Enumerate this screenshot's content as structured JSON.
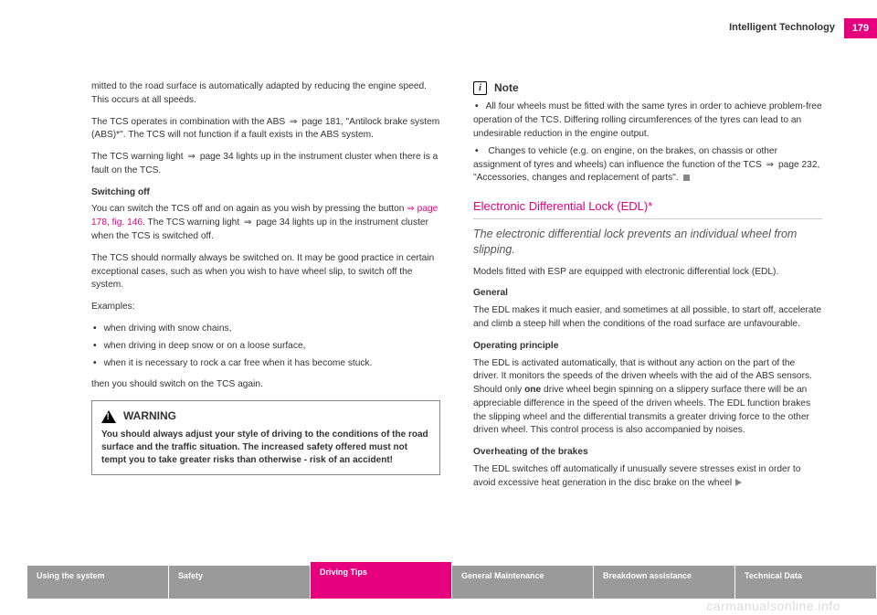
{
  "header": {
    "section": "Intelligent Technology",
    "page_number": "179"
  },
  "left": {
    "p1": "mitted to the road surface is automatically adapted by reducing the engine speed. This occurs at all speeds.",
    "p2a": "The TCS operates in combination with the ABS ",
    "p2b": " page 181, \"Antilock brake system (ABS)*\". The TCS will not function if a fault exists in the ABS system.",
    "p3a": "The TCS warning light ",
    "p3b": " page 34 lights up in the instrument cluster when there is a fault on the TCS.",
    "switching_head": "Switching off",
    "p4a": "You can switch the TCS off and on again as you wish by pressing the button ",
    "p4link": "⇒ page 178, fig. 146",
    "p4b": ". The TCS warning light ",
    "p4c": " page 34 lights up in the instrument cluster when the TCS is switched off.",
    "p5": "The TCS should normally always be switched on. It may be good practice in certain exceptional cases, such as when you wish to have wheel slip, to switch off the system.",
    "p6": "Examples:",
    "bullets": [
      "when driving with snow chains,",
      "when driving in deep snow or on a loose surface,",
      "when it is necessary to rock a car free when it has become stuck."
    ],
    "p7": "then you should switch on the TCS again.",
    "warning_label": "WARNING",
    "warning_text": "You should always adjust your style of driving to the conditions of the road surface and the traffic situation. The increased safety offered must not tempt you to take greater risks than otherwise - risk of an accident!"
  },
  "right": {
    "note_label": "Note",
    "note1": "All four wheels must be fitted with the same tyres in order to achieve problem-free operation of the TCS. Differing rolling circumferences of the tyres can lead to an undesirable reduction in the engine output.",
    "note2a": "Changes to vehicle (e.g. on engine, on the brakes, on chassis or other assignment of tyres and wheels) can influence the function of the TCS ",
    "note2b": " page 232, \"Accessories, changes and replacement of parts\".",
    "edl_head": "Electronic Differential Lock (EDL)*",
    "edl_sub": "The electronic differential lock prevents an individual wheel from slipping.",
    "p1": "Models fitted with ESP are equipped with electronic differential lock (EDL).",
    "general_head": "General",
    "p2": "The EDL makes it much easier, and sometimes at all possible, to start off, accelerate and climb a steep hill when the conditions of the road surface are unfavourable.",
    "op_head": "Operating principle",
    "p3a": "The EDL is activated automatically, that is without any action on the part of the driver. It monitors the speeds of the driven wheels with the aid of the ABS sensors. Should only ",
    "p3one": "one",
    "p3b": " drive wheel begin spinning on a slippery surface there will be an appreciable difference in the speed of the driven wheels. The EDL function brakes the slipping wheel and the differential transmits a greater driving force to the other driven wheel. This control process is also accompanied by noises.",
    "overheat_head": "Overheating of the brakes",
    "p4": "The EDL switches off automatically if unusually severe stresses exist in order to avoid excessive heat generation in the disc brake on the wheel"
  },
  "nav": {
    "tabs": [
      "Using the system",
      "Safety",
      "Driving Tips",
      "General Maintenance",
      "Breakdown assistance",
      "Technical Data"
    ],
    "active_index": 2
  },
  "watermark": "carmanualsonline.info"
}
